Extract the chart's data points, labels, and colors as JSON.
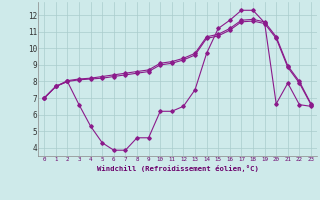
{
  "xlabel": "Windchill (Refroidissement éolien,°C)",
  "background_color": "#ceeaea",
  "grid_color": "#aacccc",
  "line_color": "#8b1a8b",
  "xlim": [
    -0.5,
    23.5
  ],
  "ylim": [
    3.5,
    12.8
  ],
  "xticks": [
    0,
    1,
    2,
    3,
    4,
    5,
    6,
    7,
    8,
    9,
    10,
    11,
    12,
    13,
    14,
    15,
    16,
    17,
    18,
    19,
    20,
    21,
    22,
    23
  ],
  "yticks": [
    4,
    5,
    6,
    7,
    8,
    9,
    10,
    11,
    12
  ],
  "series1_x": [
    0,
    1,
    2,
    3,
    4,
    5,
    6,
    7,
    8,
    9,
    10,
    11,
    12,
    13,
    14,
    15,
    16,
    17,
    18,
    19,
    20,
    21,
    22,
    23
  ],
  "series1_y": [
    7.0,
    7.7,
    8.0,
    8.1,
    8.15,
    8.2,
    8.3,
    8.4,
    8.5,
    8.6,
    9.0,
    9.1,
    9.3,
    9.6,
    10.6,
    10.75,
    11.1,
    11.6,
    11.65,
    11.5,
    10.6,
    8.85,
    7.9,
    6.6
  ],
  "series2_x": [
    0,
    1,
    2,
    3,
    4,
    5,
    6,
    7,
    8,
    9,
    10,
    11,
    12,
    13,
    14,
    15,
    16,
    17,
    18,
    19,
    20,
    21,
    22,
    23
  ],
  "series2_y": [
    7.0,
    7.7,
    8.05,
    8.15,
    8.2,
    8.3,
    8.4,
    8.5,
    8.6,
    8.7,
    9.1,
    9.2,
    9.4,
    9.7,
    10.7,
    10.85,
    11.2,
    11.7,
    11.75,
    11.6,
    10.7,
    8.95,
    8.0,
    6.65
  ],
  "series3_x": [
    0,
    1,
    2,
    3,
    4,
    5,
    6,
    7,
    8,
    9,
    10,
    11,
    12,
    13,
    14,
    15,
    16,
    17,
    18,
    19,
    20,
    21,
    22,
    23
  ],
  "series3_y": [
    7.0,
    7.7,
    8.0,
    6.6,
    5.3,
    4.3,
    3.85,
    3.85,
    4.6,
    4.6,
    6.2,
    6.2,
    6.5,
    7.5,
    9.7,
    11.2,
    11.7,
    12.3,
    12.3,
    11.55,
    6.65,
    7.9,
    6.6,
    6.5
  ]
}
